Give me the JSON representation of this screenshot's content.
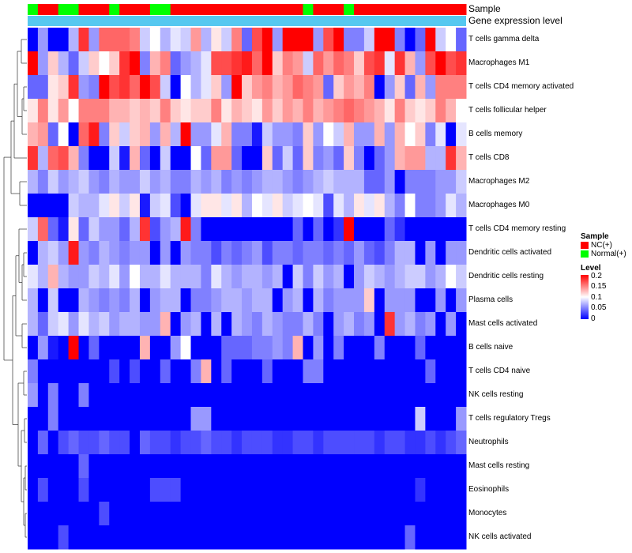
{
  "chart_data": {
    "type": "heatmap",
    "title": "",
    "annotation_rows": [
      "Sample",
      "Gene expression level"
    ],
    "sample_groups": [
      "Normal(+)",
      "NC(+)",
      "NC(+)",
      "Normal(+)",
      "Normal(+)",
      "NC(+)",
      "NC(+)",
      "NC(+)",
      "Normal(+)",
      "NC(+)",
      "NC(+)",
      "NC(+)",
      "Normal(+)",
      "Normal(+)",
      "NC(+)",
      "NC(+)",
      "NC(+)",
      "NC(+)",
      "NC(+)",
      "NC(+)",
      "NC(+)",
      "NC(+)",
      "NC(+)",
      "NC(+)",
      "NC(+)",
      "NC(+)",
      "NC(+)",
      "Normal(+)",
      "NC(+)",
      "NC(+)",
      "NC(+)",
      "Normal(+)",
      "NC(+)",
      "NC(+)",
      "NC(+)",
      "NC(+)",
      "NC(+)",
      "NC(+)",
      "NC(+)",
      "NC(+)",
      "NC(+)",
      "NC(+)",
      "NC(+)"
    ],
    "rows": [
      "T cells gamma delta",
      "Macrophages M1",
      "T cells CD4 memory activated",
      "T cells follicular helper",
      "B cells memory",
      "T cells CD8",
      "Macrophages M2",
      "Macrophages M0",
      "T cells CD4 memory resting",
      "Dendritic cells activated",
      "Dendritic cells resting",
      "Plasma cells",
      "Mast cells activated",
      "B cells naive",
      "T cells CD4 naive",
      "NK cells resting",
      "T cells regulatory  Tregs",
      "Neutrophils",
      "Mast cells resting",
      "Eosinophils",
      "Monocytes",
      "NK cells activated"
    ],
    "values": [
      [
        0.0,
        0.06,
        0.0,
        0.0,
        0.07,
        0.18,
        0.06,
        0.16,
        0.16,
        0.16,
        0.15,
        0.08,
        0.1,
        0.07,
        0.09,
        0.08,
        0.14,
        0.07,
        0.11,
        0.08,
        0.15,
        0.04,
        0.17,
        0.2,
        0.06,
        0.2,
        0.2,
        0.2,
        0.06,
        0.17,
        0.2,
        0.05,
        0.05,
        0.08,
        0.2,
        0.2,
        0.05,
        0.0,
        0.04,
        0.2,
        0.08,
        0.1,
        0.04
      ],
      [
        0.2,
        0.06,
        0.12,
        0.07,
        0.04,
        0.08,
        0.12,
        0.1,
        0.12,
        0.18,
        0.2,
        0.05,
        0.13,
        0.15,
        0.04,
        0.06,
        0.07,
        0.09,
        0.17,
        0.17,
        0.18,
        0.19,
        0.16,
        0.2,
        0.12,
        0.15,
        0.14,
        0.08,
        0.16,
        0.14,
        0.16,
        0.15,
        0.12,
        0.17,
        0.18,
        0.09,
        0.18,
        0.13,
        0.06,
        0.17,
        0.2,
        0.17,
        0.18
      ],
      [
        0.04,
        0.04,
        0.11,
        0.12,
        0.18,
        0.06,
        0.05,
        0.2,
        0.17,
        0.18,
        0.16,
        0.2,
        0.17,
        0.08,
        0.0,
        0.1,
        0.07,
        0.09,
        0.12,
        0.06,
        0.2,
        0.12,
        0.14,
        0.15,
        0.13,
        0.14,
        0.16,
        0.15,
        0.14,
        0.04,
        0.12,
        0.14,
        0.13,
        0.15,
        0.0,
        0.06,
        0.12,
        0.04,
        0.13,
        0.06,
        0.15,
        0.15,
        0.15
      ],
      [
        0.11,
        0.15,
        0.11,
        0.14,
        0.1,
        0.15,
        0.15,
        0.15,
        0.13,
        0.13,
        0.12,
        0.13,
        0.12,
        0.15,
        0.12,
        0.11,
        0.12,
        0.12,
        0.15,
        0.11,
        0.13,
        0.12,
        0.11,
        0.14,
        0.12,
        0.14,
        0.13,
        0.15,
        0.13,
        0.14,
        0.15,
        0.16,
        0.15,
        0.14,
        0.13,
        0.11,
        0.15,
        0.12,
        0.11,
        0.12,
        0.15,
        0.13,
        0.1
      ],
      [
        0.13,
        0.14,
        0.04,
        0.1,
        0.0,
        0.16,
        0.19,
        0.05,
        0.12,
        0.08,
        0.12,
        0.13,
        0.06,
        0.13,
        0.07,
        0.2,
        0.06,
        0.06,
        0.09,
        0.13,
        0.05,
        0.05,
        0.01,
        0.08,
        0.06,
        0.06,
        0.05,
        0.12,
        0.06,
        0.1,
        0.08,
        0.13,
        0.06,
        0.06,
        0.13,
        0.06,
        0.13,
        0.1,
        0.12,
        0.05,
        0.09,
        0.0,
        0.09
      ],
      [
        0.18,
        0.07,
        0.16,
        0.17,
        0.13,
        0.05,
        0.0,
        0.0,
        0.08,
        0.01,
        0.13,
        0.04,
        0.0,
        0.08,
        0.0,
        0.0,
        0.1,
        0.04,
        0.14,
        0.14,
        0.04,
        0.0,
        0.0,
        0.12,
        0.04,
        0.08,
        0.04,
        0.12,
        0.05,
        0.06,
        0.04,
        0.12,
        0.05,
        0.0,
        0.04,
        0.06,
        0.13,
        0.14,
        0.14,
        0.07,
        0.07,
        0.18,
        0.13
      ],
      [
        0.07,
        0.05,
        0.08,
        0.06,
        0.07,
        0.08,
        0.06,
        0.05,
        0.07,
        0.06,
        0.06,
        0.08,
        0.06,
        0.07,
        0.05,
        0.05,
        0.07,
        0.06,
        0.07,
        0.05,
        0.06,
        0.05,
        0.06,
        0.07,
        0.07,
        0.06,
        0.05,
        0.06,
        0.07,
        0.08,
        0.07,
        0.07,
        0.07,
        0.04,
        0.04,
        0.06,
        0.0,
        0.05,
        0.05,
        0.05,
        0.06,
        0.06,
        0.08
      ],
      [
        0.0,
        0.0,
        0.0,
        0.0,
        0.08,
        0.07,
        0.07,
        0.09,
        0.11,
        0.08,
        0.11,
        0.01,
        0.08,
        0.09,
        0.03,
        0.0,
        0.09,
        0.11,
        0.11,
        0.09,
        0.11,
        0.07,
        0.1,
        0.09,
        0.11,
        0.08,
        0.09,
        0.1,
        0.09,
        0.03,
        0.09,
        0.07,
        0.11,
        0.09,
        0.11,
        0.07,
        0.05,
        0.1,
        0.05,
        0.05,
        0.06,
        0.09,
        0.07
      ],
      [
        0.08,
        0.16,
        0.04,
        0.01,
        0.11,
        0.04,
        0.08,
        0.06,
        0.06,
        0.04,
        0.07,
        0.18,
        0.03,
        0.06,
        0.07,
        0.19,
        0.05,
        0.0,
        0.0,
        0.0,
        0.0,
        0.0,
        0.0,
        0.0,
        0.0,
        0.0,
        0.04,
        0.0,
        0.04,
        0.0,
        0.02,
        0.2,
        0.0,
        0.0,
        0.0,
        0.04,
        0.02,
        0.0,
        0.0,
        0.0,
        0.0,
        0.0,
        0.0
      ],
      [
        0.0,
        0.07,
        0.08,
        0.06,
        0.19,
        0.06,
        0.05,
        0.07,
        0.06,
        0.05,
        0.06,
        0.06,
        0.0,
        0.06,
        0.0,
        0.06,
        0.05,
        0.05,
        0.03,
        0.05,
        0.04,
        0.05,
        0.06,
        0.03,
        0.05,
        0.05,
        0.04,
        0.05,
        0.05,
        0.04,
        0.05,
        0.04,
        0.06,
        0.04,
        0.03,
        0.05,
        0.07,
        0.07,
        0.0,
        0.06,
        0.0,
        0.06,
        0.06
      ],
      [
        0.09,
        0.07,
        0.13,
        0.07,
        0.06,
        0.06,
        0.08,
        0.07,
        0.09,
        0.06,
        0.1,
        0.07,
        0.07,
        0.09,
        0.07,
        0.07,
        0.07,
        0.05,
        0.09,
        0.07,
        0.06,
        0.07,
        0.07,
        0.06,
        0.07,
        0.0,
        0.08,
        0.05,
        0.08,
        0.06,
        0.07,
        0.0,
        0.06,
        0.08,
        0.07,
        0.06,
        0.07,
        0.08,
        0.08,
        0.06,
        0.07,
        0.1,
        0.08
      ],
      [
        0.07,
        0.0,
        0.08,
        0.0,
        0.0,
        0.07,
        0.06,
        0.05,
        0.06,
        0.05,
        0.07,
        0.0,
        0.06,
        0.07,
        0.07,
        0.0,
        0.05,
        0.05,
        0.06,
        0.07,
        0.07,
        0.06,
        0.07,
        0.07,
        0.0,
        0.06,
        0.07,
        0.0,
        0.07,
        0.05,
        0.06,
        0.06,
        0.06,
        0.12,
        0.0,
        0.06,
        0.06,
        0.06,
        0.0,
        0.0,
        0.06,
        0.0,
        0.06
      ],
      [
        0.07,
        0.04,
        0.08,
        0.09,
        0.06,
        0.09,
        0.07,
        0.08,
        0.06,
        0.07,
        0.07,
        0.06,
        0.06,
        0.13,
        0.0,
        0.06,
        0.07,
        0.0,
        0.07,
        0.0,
        0.07,
        0.06,
        0.05,
        0.07,
        0.06,
        0.05,
        0.05,
        0.07,
        0.05,
        0.0,
        0.06,
        0.07,
        0.05,
        0.06,
        0.0,
        0.18,
        0.06,
        0.07,
        0.05,
        0.06,
        0.0,
        0.06,
        0.0
      ],
      [
        0.0,
        0.06,
        0.01,
        0.0,
        0.2,
        0.0,
        0.04,
        0.0,
        0.0,
        0.0,
        0.0,
        0.13,
        0.0,
        0.0,
        0.06,
        0.1,
        0.0,
        0.0,
        0.0,
        0.04,
        0.04,
        0.04,
        0.05,
        0.05,
        0.06,
        0.05,
        0.13,
        0.0,
        0.06,
        0.0,
        0.05,
        0.0,
        0.0,
        0.0,
        0.05,
        0.0,
        0.0,
        0.0,
        0.04,
        0.0,
        0.0,
        0.0,
        0.0
      ],
      [
        0.05,
        0.0,
        0.0,
        0.0,
        0.0,
        0.0,
        0.0,
        0.0,
        0.03,
        0.0,
        0.03,
        0.0,
        0.0,
        0.04,
        0.0,
        0.0,
        0.05,
        0.13,
        0.0,
        0.04,
        0.0,
        0.0,
        0.0,
        0.04,
        0.0,
        0.0,
        0.0,
        0.05,
        0.05,
        0.0,
        0.0,
        0.0,
        0.0,
        0.0,
        0.0,
        0.0,
        0.0,
        0.0,
        0.0,
        0.04,
        0.0,
        0.0,
        0.0
      ],
      [
        0.06,
        0.0,
        0.05,
        0.0,
        0.0,
        0.05,
        0.0,
        0.0,
        0.0,
        0.0,
        0.0,
        0.0,
        0.0,
        0.0,
        0.0,
        0.0,
        0.0,
        0.0,
        0.0,
        0.0,
        0.0,
        0.0,
        0.0,
        0.0,
        0.0,
        0.0,
        0.0,
        0.0,
        0.0,
        0.0,
        0.0,
        0.0,
        0.0,
        0.0,
        0.0,
        0.0,
        0.0,
        0.0,
        0.0,
        0.0,
        0.0,
        0.0,
        0.0
      ],
      [
        0.0,
        0.0,
        0.05,
        0.0,
        0.0,
        0.0,
        0.0,
        0.0,
        0.0,
        0.0,
        0.0,
        0.0,
        0.0,
        0.0,
        0.0,
        0.0,
        0.06,
        0.06,
        0.0,
        0.0,
        0.0,
        0.0,
        0.0,
        0.0,
        0.0,
        0.0,
        0.0,
        0.0,
        0.0,
        0.0,
        0.0,
        0.0,
        0.0,
        0.0,
        0.0,
        0.0,
        0.0,
        0.0,
        0.08,
        0.0,
        0.0,
        0.0,
        0.06
      ],
      [
        0.0,
        0.04,
        0.0,
        0.03,
        0.04,
        0.03,
        0.03,
        0.04,
        0.03,
        0.03,
        0.0,
        0.04,
        0.03,
        0.03,
        0.02,
        0.03,
        0.03,
        0.04,
        0.03,
        0.03,
        0.02,
        0.03,
        0.03,
        0.03,
        0.02,
        0.02,
        0.03,
        0.03,
        0.02,
        0.03,
        0.03,
        0.03,
        0.03,
        0.03,
        0.02,
        0.03,
        0.03,
        0.02,
        0.02,
        0.03,
        0.02,
        0.03,
        0.04
      ],
      [
        0.0,
        0.0,
        0.0,
        0.0,
        0.0,
        0.04,
        0.0,
        0.0,
        0.0,
        0.0,
        0.0,
        0.0,
        0.0,
        0.0,
        0.0,
        0.0,
        0.0,
        0.0,
        0.0,
        0.0,
        0.0,
        0.0,
        0.0,
        0.0,
        0.0,
        0.0,
        0.0,
        0.0,
        0.0,
        0.0,
        0.0,
        0.0,
        0.0,
        0.0,
        0.0,
        0.0,
        0.0,
        0.0,
        0.0,
        0.0,
        0.0,
        0.0,
        0.0
      ],
      [
        0.0,
        0.03,
        0.0,
        0.0,
        0.0,
        0.03,
        0.0,
        0.0,
        0.0,
        0.0,
        0.0,
        0.0,
        0.03,
        0.03,
        0.03,
        0.0,
        0.0,
        0.0,
        0.0,
        0.0,
        0.0,
        0.0,
        0.0,
        0.0,
        0.0,
        0.0,
        0.0,
        0.0,
        0.0,
        0.0,
        0.0,
        0.0,
        0.0,
        0.0,
        0.0,
        0.0,
        0.0,
        0.0,
        0.02,
        0.0,
        0.0,
        0.0,
        0.0
      ],
      [
        0.0,
        0.0,
        0.0,
        0.0,
        0.0,
        0.0,
        0.0,
        0.03,
        0.0,
        0.0,
        0.0,
        0.0,
        0.0,
        0.0,
        0.0,
        0.0,
        0.0,
        0.0,
        0.0,
        0.0,
        0.0,
        0.0,
        0.0,
        0.0,
        0.0,
        0.0,
        0.0,
        0.0,
        0.0,
        0.0,
        0.0,
        0.0,
        0.0,
        0.0,
        0.0,
        0.0,
        0.0,
        0.0,
        0.0,
        0.0,
        0.0,
        0.0,
        0.0
      ],
      [
        0.0,
        0.0,
        0.0,
        0.03,
        0.0,
        0.0,
        0.0,
        0.0,
        0.0,
        0.0,
        0.0,
        0.0,
        0.0,
        0.0,
        0.0,
        0.0,
        0.0,
        0.0,
        0.0,
        0.0,
        0.0,
        0.0,
        0.0,
        0.0,
        0.0,
        0.0,
        0.0,
        0.0,
        0.0,
        0.0,
        0.0,
        0.0,
        0.0,
        0.0,
        0.0,
        0.0,
        0.0,
        0.04,
        0.0,
        0.0,
        0.0,
        0.0,
        0.0
      ]
    ],
    "color_scale": {
      "min": 0,
      "max": 0.2,
      "colors": [
        "#0000ff",
        "#ffffff",
        "#ff0000"
      ]
    },
    "legend": {
      "sample_title": "Sample",
      "sample_items": [
        {
          "label": "NC(+)",
          "color": "#ff0000"
        },
        {
          "label": "Normal(+)",
          "color": "#00ff00"
        }
      ],
      "level_title": "Level",
      "level_ticks": [
        "0.2",
        "0.15",
        "0.1",
        "0.05",
        "0"
      ]
    },
    "expression_bar_color": "#56c8f0"
  }
}
